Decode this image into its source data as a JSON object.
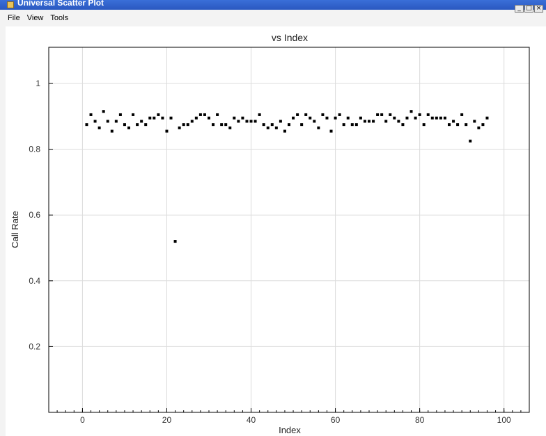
{
  "window": {
    "title": "Universal Scatter Plot",
    "controls": [
      "_",
      "□",
      "×"
    ]
  },
  "menu": [
    "File",
    "View",
    "Tools"
  ],
  "chart_data": {
    "type": "scatter",
    "title": "vs Index",
    "xlabel": "Index",
    "ylabel": "Call Rate",
    "xlim": [
      -8,
      106
    ],
    "ylim": [
      0,
      1.11
    ],
    "xticks": [
      0,
      20,
      40,
      60,
      80,
      100
    ],
    "yticks": [
      0.2,
      0.4,
      0.6,
      0.8,
      1
    ],
    "ytick_labels": [
      "0.2",
      "0.4",
      "0.6",
      "0.8",
      "1"
    ],
    "grid": true,
    "legend": "none",
    "series": [
      {
        "color": "#000000",
        "x": [
          1,
          2,
          3,
          4,
          5,
          6,
          7,
          8,
          9,
          10,
          11,
          12,
          13,
          14,
          15,
          16,
          17,
          18,
          19,
          20,
          21,
          22,
          23,
          24,
          25,
          26,
          27,
          28,
          29,
          30,
          31,
          32,
          33,
          34,
          35,
          36,
          37,
          38,
          39,
          40,
          41,
          42,
          43,
          44,
          45,
          46,
          47,
          48,
          49,
          50,
          51,
          52,
          53,
          54,
          55,
          56,
          57,
          58,
          59,
          60,
          61,
          62,
          63,
          64,
          65,
          66,
          67,
          68,
          69,
          70,
          71,
          72,
          73,
          74,
          75,
          76,
          77,
          78,
          79,
          80,
          81,
          82,
          83,
          84,
          85,
          86,
          87,
          88,
          89,
          90,
          91,
          92,
          93,
          94,
          95,
          96
        ],
        "y": [
          0.875,
          0.905,
          0.885,
          0.865,
          0.915,
          0.885,
          0.855,
          0.885,
          0.905,
          0.875,
          0.865,
          0.905,
          0.875,
          0.885,
          0.875,
          0.895,
          0.895,
          0.905,
          0.895,
          0.855,
          0.895,
          0.52,
          0.865,
          0.875,
          0.875,
          0.885,
          0.895,
          0.905,
          0.905,
          0.895,
          0.875,
          0.905,
          0.875,
          0.875,
          0.865,
          0.895,
          0.885,
          0.895,
          0.885,
          0.885,
          0.885,
          0.905,
          0.875,
          0.865,
          0.875,
          0.865,
          0.885,
          0.855,
          0.875,
          0.895,
          0.905,
          0.875,
          0.905,
          0.895,
          0.885,
          0.865,
          0.905,
          0.895,
          0.855,
          0.895,
          0.905,
          0.875,
          0.895,
          0.875,
          0.875,
          0.895,
          0.885,
          0.885,
          0.885,
          0.905,
          0.905,
          0.885,
          0.905,
          0.895,
          0.885,
          0.875,
          0.895,
          0.915,
          0.895,
          0.905,
          0.875,
          0.905,
          0.895,
          0.895,
          0.895,
          0.895,
          0.875,
          0.885,
          0.875,
          0.905,
          0.875,
          0.825,
          0.885,
          0.865,
          0.875,
          0.895
        ]
      }
    ]
  }
}
